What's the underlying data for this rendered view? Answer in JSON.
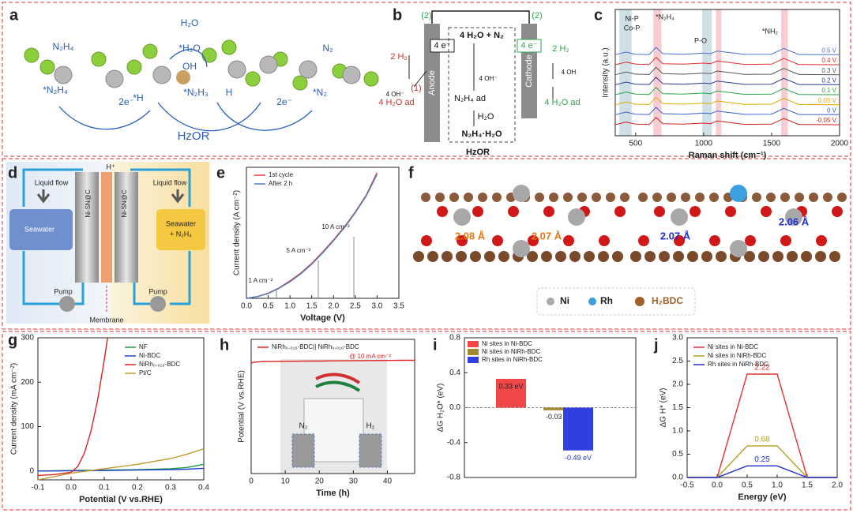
{
  "panel_labels": [
    "a",
    "b",
    "c",
    "d",
    "e",
    "f",
    "g",
    "h",
    "i",
    "j"
  ],
  "diagram_a": {
    "labels": [
      "N₂H₄",
      "H₂O",
      "*H₂O",
      "OH",
      "*N₂H₄",
      "*H",
      "*N₂H₃",
      "H",
      "N₂",
      "*N₂",
      "2e⁻",
      "2e⁻",
      "HzOR"
    ]
  },
  "diagram_b": {
    "labels": [
      "(2)",
      "(2)",
      "4 H₂O + N₂",
      "2 H₂",
      "4 e⁻",
      "4 OH⁻",
      "(1)",
      "4 OH⁻",
      "4 H₂O ad",
      "N₂H₄ ad",
      "H₂O",
      "N₂H₄·H₂O",
      "HzOR",
      "Anode",
      "Cathode",
      "4 e⁻",
      "2 H₂",
      "4 OH",
      "4 H₂O ad"
    ]
  },
  "diagram_d": {
    "labels": [
      "Liquid flow",
      "Liquid flow",
      "Seawater",
      "Seawater",
      "+ N₂H₄",
      "Pump",
      "Pump",
      "Membrane",
      "Ni-SN@C",
      "Ni-SN@C",
      "H⁺"
    ]
  },
  "diagram_f": {
    "distances": [
      "2.08 Å",
      "2.07 Å",
      "2.07 Å",
      "2.06 Å"
    ],
    "legend": [
      "Ni",
      "Rh",
      "H₂BDC"
    ]
  },
  "chart_data": [
    {
      "type": "line",
      "xlabel": "Raman shift (cm⁻¹)",
      "ylabel": "Intensity (a.u.)",
      "xlim": [
        350,
        2000
      ],
      "xticks": [
        500,
        1000,
        1500,
        2000
      ],
      "ylim": [
        0,
        12
      ],
      "highlights": [
        [
          380,
          470
        ],
        [
          630,
          690
        ],
        [
          990,
          1060
        ],
        [
          1090,
          1130
        ],
        [
          1570,
          1620
        ]
      ],
      "highlight_colors": [
        "#b9d3dc",
        "#f2b8c0",
        "#b9d3dc",
        "#f2b8c0",
        "#f2b8c0"
      ],
      "annotations": [
        "Ni-P",
        "Co-P",
        "*N₂H₄",
        "P-O",
        "*NH₂"
      ],
      "x": [
        350,
        430,
        500,
        600,
        650,
        700,
        850,
        1000,
        1050,
        1100,
        1300,
        1500,
        1590,
        1700,
        2000
      ],
      "series": [
        {
          "name": "0.5 V",
          "color": "#4a6fd0",
          "values": [
            7.7,
            7.95,
            7.75,
            7.72,
            8.4,
            7.8,
            7.75,
            7.85,
            7.8,
            8.05,
            7.73,
            7.75,
            8.3,
            7.72,
            7.7
          ]
        },
        {
          "name": "0.4 V",
          "color": "#e03030",
          "values": [
            6.75,
            7.0,
            6.8,
            6.77,
            7.45,
            6.85,
            6.8,
            6.9,
            6.85,
            7.1,
            6.78,
            6.8,
            7.35,
            6.77,
            6.75
          ]
        },
        {
          "name": "0.3 V",
          "color": "#555555",
          "values": [
            5.8,
            6.05,
            5.85,
            5.82,
            6.5,
            5.9,
            5.85,
            5.95,
            5.9,
            6.15,
            5.83,
            5.85,
            6.4,
            5.82,
            5.8
          ]
        },
        {
          "name": "0.2 V",
          "color": "#2b3a8c",
          "values": [
            4.85,
            5.1,
            4.9,
            4.87,
            5.55,
            4.95,
            4.9,
            5.0,
            4.95,
            5.2,
            4.88,
            4.9,
            5.45,
            4.87,
            4.85
          ]
        },
        {
          "name": "0.1 V",
          "color": "#2aa84a",
          "values": [
            3.9,
            4.15,
            3.95,
            3.92,
            4.6,
            4.0,
            3.95,
            4.05,
            4.0,
            4.25,
            3.93,
            3.95,
            4.5,
            3.92,
            3.9
          ]
        },
        {
          "name": "0.05 V",
          "color": "#e0a800",
          "values": [
            2.95,
            3.2,
            3.0,
            2.97,
            3.65,
            3.05,
            3.0,
            3.1,
            3.05,
            3.3,
            2.98,
            3.0,
            3.55,
            2.97,
            2.95
          ]
        },
        {
          "name": "0 V",
          "color": "#3a5fcf",
          "values": [
            2.0,
            2.25,
            2.05,
            2.02,
            2.7,
            2.1,
            2.05,
            2.15,
            2.1,
            2.35,
            2.03,
            2.05,
            2.6,
            2.02,
            2.0
          ]
        },
        {
          "name": "-0.05 V",
          "color": "#d02020",
          "values": [
            1.05,
            1.3,
            1.1,
            1.07,
            1.75,
            1.15,
            1.1,
            1.2,
            1.15,
            1.4,
            1.08,
            1.1,
            1.65,
            1.07,
            1.05
          ]
        }
      ]
    },
    {
      "type": "line",
      "xlabel": "Voltage (V)",
      "ylabel": "Current density (A cm⁻²)",
      "xlim": [
        0,
        3.5
      ],
      "xticks": [
        {
          "value": 0,
          "label": "0.0"
        },
        0.5,
        {
          "value": 1,
          "label": "1.0"
        },
        1.5,
        {
          "value": 2,
          "label": "2.0"
        },
        2.5,
        {
          "value": 3,
          "label": "3.0"
        },
        3.5
      ],
      "ylim": [
        0,
        15
      ],
      "annotations": [
        "1 A cm⁻²",
        "5 A cm⁻²",
        "10 A cm⁻²"
      ],
      "x": [
        0,
        0.25,
        0.5,
        0.75,
        1,
        1.25,
        1.5,
        1.75,
        2,
        2.25,
        2.5,
        2.75,
        3
      ],
      "series": [
        {
          "name": "1st cycle",
          "color": "#e04040",
          "values": [
            0,
            0.2,
            0.6,
            1.2,
            2.0,
            2.9,
            4.0,
            5.3,
            6.7,
            8.2,
            9.9,
            11.8,
            14.4
          ]
        },
        {
          "name": "After 2 h",
          "color": "#4a7fc0",
          "values": [
            0,
            0.2,
            0.55,
            1.15,
            1.9,
            2.8,
            3.9,
            5.2,
            6.6,
            8.1,
            9.8,
            11.7,
            14.2
          ]
        }
      ]
    },
    {
      "type": "line",
      "xlabel": "Potential (V vs.RHE)",
      "ylabel": "Current density (mA cm⁻²)",
      "xlim": [
        -0.1,
        0.4
      ],
      "xticks": [
        -0.1,
        {
          "value": 0,
          "label": "0.0"
        },
        0.1,
        0.2,
        0.3,
        0.4
      ],
      "ylim": [
        -20,
        300
      ],
      "yticks": [
        0,
        100,
        200,
        300
      ],
      "series": [
        {
          "name": "NF",
          "color": "#1a9a3a",
          "x": [
            -0.1,
            0,
            0.1,
            0.2,
            0.3,
            0.35,
            0.4
          ],
          "values": [
            0,
            1,
            2,
            3,
            5,
            8,
            15
          ]
        },
        {
          "name": "Ni-BDC",
          "color": "#2040d0",
          "x": [
            -0.1,
            0,
            0.1,
            0.2,
            0.3,
            0.35,
            0.4
          ],
          "values": [
            0,
            0.5,
            1,
            2,
            3,
            4,
            6
          ]
        },
        {
          "name": "NiRh₀.₀₁₆-BDC",
          "color": "#e02020",
          "x": [
            -0.1,
            -0.05,
            0,
            0.02,
            0.04,
            0.06,
            0.08,
            0.1,
            0.11
          ],
          "values": [
            -10,
            -8,
            -3,
            10,
            40,
            90,
            160,
            250,
            300
          ]
        },
        {
          "name": "Pt/C",
          "color": "#c09a30",
          "x": [
            -0.1,
            0,
            0.1,
            0.2,
            0.3,
            0.35,
            0.4
          ],
          "values": [
            -20,
            -5,
            5,
            15,
            28,
            38,
            50
          ]
        }
      ]
    },
    {
      "type": "line",
      "xlabel": "Time (h)",
      "ylabel": "Potential (V vs.RHE)",
      "xlim": [
        0,
        48
      ],
      "xticks": [
        0,
        10,
        20,
        30,
        40
      ],
      "ylim": [
        -1,
        0.3
      ],
      "annotations": [
        "@ 10 mA cm⁻²"
      ],
      "inset_labels": [
        "N₂",
        "H₂"
      ],
      "x": [
        0,
        1,
        4,
        8,
        12,
        16,
        20,
        24,
        28,
        32,
        36,
        40,
        44,
        48
      ],
      "series": [
        {
          "name": "NiRh₀.₀₁₆-BDC|| NiRh₀.₀₁₆-BDC",
          "color": "#e02020",
          "values": [
            0.07,
            0.08,
            0.085,
            0.087,
            0.088,
            0.09,
            0.09,
            0.092,
            0.093,
            0.094,
            0.095,
            0.096,
            0.097,
            0.097
          ]
        }
      ]
    },
    {
      "type": "bar",
      "ylabel": "ΔG H₂O* (eV)",
      "ylim": [
        -0.8,
        0.8
      ],
      "yticks": [
        -0.8,
        -0.4,
        {
          "value": 0,
          "label": "0.0"
        },
        0.4,
        0.8
      ],
      "categories": [
        null,
        null,
        null
      ],
      "labels": [
        "Ni sites in Ni-BDC",
        "Ni sites in NiRh-BDC",
        "Rh sites in NiRh-BDC"
      ],
      "values": [
        0.33,
        -0.03,
        -0.49
      ],
      "value_labels": [
        "0.33 eV",
        "-0.03 eV",
        "-0.49 eV"
      ],
      "colors": [
        "#f04848",
        "#a08a30",
        "#3040e0"
      ]
    },
    {
      "type": "line",
      "xlabel": "Energy (eV)",
      "ylabel": "ΔG H* (eV)",
      "xlim": [
        -0.5,
        2
      ],
      "xticks": [
        -0.5,
        {
          "value": 0,
          "label": "0.0"
        },
        0.5,
        {
          "value": 1,
          "label": "1.0"
        },
        1.5,
        {
          "value": 2,
          "label": "2.0"
        }
      ],
      "ylim": [
        0,
        3
      ],
      "yticks": [
        {
          "value": 0,
          "label": "0.0"
        },
        0.5,
        {
          "value": 1,
          "label": "1.0"
        },
        1.5,
        {
          "value": 2,
          "label": "2.0"
        },
        2.5,
        {
          "value": 3,
          "label": "3.0"
        }
      ],
      "x": [
        -0.5,
        0,
        0.5,
        1,
        1.5,
        2
      ],
      "series": [
        {
          "name": "Ni sites in Ni-BDC",
          "color": "#e83030",
          "values": [
            0,
            0,
            2.22,
            2.22,
            0,
            0
          ]
        },
        {
          "name": "Ni sites in NiRh-BDC",
          "color": "#b0a020",
          "values": [
            0,
            0,
            0.68,
            0.68,
            0,
            0
          ]
        },
        {
          "name": "Rh sites in NiRh-BDC",
          "color": "#2030d0",
          "values": [
            0,
            0,
            0.25,
            0.25,
            0,
            0
          ]
        }
      ]
    }
  ]
}
